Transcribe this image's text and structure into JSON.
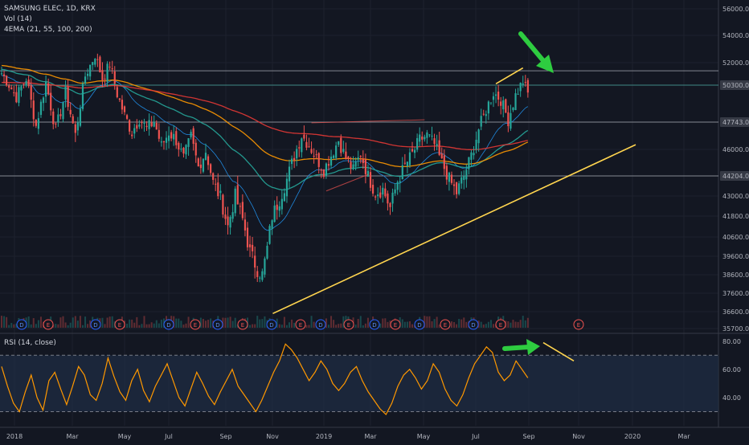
{
  "header": {
    "symbol_line": "SAMSUNG ELEC, 1D, KRX",
    "vol_line": "Vol (14)",
    "ema_line": "4EMA (21, 55, 100, 200)",
    "rsi_line": "RSI (14, close)"
  },
  "colors": {
    "background": "#131722",
    "grid": "#1e222d",
    "up": "#26a69a",
    "down": "#ef5350",
    "ema21": "#2196f3",
    "ema55": "#26a69a",
    "ema100": "#ff9800",
    "ema200": "#e53935",
    "trend": "#ffd54f",
    "arrow": "#2ecc40",
    "rsi": "#ff9800",
    "level": "#b2b5be",
    "level_accent": "#4db6ac"
  },
  "chart_data": [
    {
      "type": "candlestick",
      "symbol": "SAMSUNG ELEC",
      "interval": "1D",
      "exchange": "KRX",
      "x_tick_labels": [
        "2018",
        "Mar",
        "May",
        "Jul",
        "Sep",
        "Nov",
        "2019",
        "Mar",
        "May",
        "Jul",
        "Sep",
        "Nov",
        "2020",
        "Mar"
      ],
      "y_tick_labels": [
        "56000.0",
        "54000.0",
        "52000.0",
        "50300.0",
        "47743.0",
        "46000.0",
        "44204.0",
        "43000.0",
        "41800.0",
        "40600.0",
        "39600.0",
        "38600.0",
        "37600.0",
        "36600.0",
        "35700.0"
      ],
      "ylim": [
        35700,
        56000
      ],
      "price_path": [
        [
          0,
          51200
        ],
        [
          6,
          49500
        ],
        [
          10,
          50800
        ],
        [
          14,
          47500
        ],
        [
          18,
          50500
        ],
        [
          22,
          47200
        ],
        [
          26,
          49800
        ],
        [
          30,
          46900
        ],
        [
          34,
          51000
        ],
        [
          38,
          52600
        ],
        [
          41,
          50800
        ],
        [
          44,
          51900
        ],
        [
          47,
          49700
        ],
        [
          50,
          48200
        ],
        [
          53,
          47100
        ],
        [
          56,
          48000
        ],
        [
          59,
          47300
        ],
        [
          62,
          47800
        ],
        [
          65,
          46200
        ],
        [
          68,
          47100
        ],
        [
          71,
          46600
        ],
        [
          74,
          45400
        ],
        [
          77,
          46800
        ],
        [
          80,
          44800
        ],
        [
          83,
          45900
        ],
        [
          86,
          43800
        ],
        [
          89,
          42900
        ],
        [
          92,
          41200
        ],
        [
          95,
          43000
        ],
        [
          98,
          41600
        ],
        [
          101,
          39800
        ],
        [
          104,
          38900
        ],
        [
          106,
          38600
        ],
        [
          108,
          40000
        ],
        [
          110,
          41800
        ],
        [
          113,
          42800
        ],
        [
          116,
          44000
        ],
        [
          119,
          45600
        ],
        [
          122,
          46900
        ],
        [
          125,
          46300
        ],
        [
          128,
          45400
        ],
        [
          131,
          44600
        ],
        [
          134,
          45600
        ],
        [
          137,
          46600
        ],
        [
          140,
          45400
        ],
        [
          143,
          44600
        ],
        [
          146,
          45700
        ],
        [
          149,
          44200
        ],
        [
          152,
          43200
        ],
        [
          155,
          43400
        ],
        [
          158,
          42300
        ],
        [
          161,
          43900
        ],
        [
          164,
          44900
        ],
        [
          167,
          45700
        ],
        [
          170,
          46600
        ],
        [
          173,
          46900
        ],
        [
          176,
          46300
        ],
        [
          179,
          45100
        ],
        [
          182,
          44000
        ],
        [
          185,
          43200
        ],
        [
          188,
          44200
        ],
        [
          191,
          45600
        ],
        [
          194,
          47300
        ],
        [
          197,
          48600
        ],
        [
          200,
          49800
        ],
        [
          203,
          49300
        ],
        [
          206,
          47900
        ],
        [
          209,
          49600
        ],
        [
          212,
          50600
        ],
        [
          214,
          49700
        ]
      ],
      "emas": [
        {
          "period": 21,
          "start": 51000
        },
        {
          "period": 55,
          "start": 51500
        },
        {
          "period": 100,
          "start": 51800
        },
        {
          "period": 200,
          "start": 50500
        }
      ],
      "horizontal_levels": [
        {
          "price": 51384,
          "label": "51384.0"
        },
        {
          "price": 50300,
          "label": "50300.0"
        },
        {
          "price": 47743,
          "label": "47743.0"
        },
        {
          "price": 44204,
          "label": "44204.0"
        }
      ],
      "trendlines": [
        {
          "name": "rising-support",
          "from": [
            58,
            36500
          ],
          "to": [
            150,
            46300
          ]
        },
        {
          "name": "price-divergence-line",
          "from": [
            201,
            50400
          ],
          "to": [
            212,
            51600
          ]
        },
        {
          "name": "breakout-resistance",
          "from": [
            126,
            47700
          ],
          "to": [
            172,
            47900
          ]
        },
        {
          "name": "lower-resistance",
          "from": [
            132,
            43300
          ],
          "to": [
            149,
            44300
          ]
        }
      ],
      "earnings_markers": [
        "D",
        "E",
        "D",
        "E",
        "D",
        "E",
        "D",
        "E",
        "D",
        "E",
        "D",
        "E",
        "D",
        "E",
        "D",
        "E",
        "D",
        "E",
        "E"
      ],
      "annotations": [
        {
          "type": "arrow",
          "color": "green",
          "pointing": "recent high"
        }
      ]
    },
    {
      "type": "line",
      "name": "RSI",
      "period": 14,
      "y_tick_labels": [
        "80.00",
        "60.00",
        "40.00"
      ],
      "ylim": [
        20,
        85
      ],
      "bands": [
        30,
        70
      ],
      "values": [
        62,
        48,
        36,
        30,
        44,
        56,
        40,
        31,
        52,
        58,
        46,
        35,
        48,
        62,
        56,
        42,
        38,
        50,
        68,
        55,
        44,
        38,
        52,
        60,
        45,
        37,
        48,
        56,
        64,
        52,
        40,
        34,
        46,
        58,
        50,
        41,
        35,
        44,
        52,
        60,
        48,
        42,
        36,
        30,
        38,
        48,
        58,
        66,
        78,
        74,
        68,
        60,
        52,
        58,
        66,
        60,
        50,
        45,
        50,
        58,
        62,
        52,
        44,
        38,
        32,
        28,
        36,
        48,
        56,
        60,
        54,
        46,
        52,
        64,
        58,
        46,
        38,
        34,
        42,
        54,
        64,
        70,
        76,
        72,
        58,
        52,
        56,
        66,
        60,
        54
      ],
      "annotations": [
        {
          "type": "arrow",
          "color": "green"
        },
        {
          "type": "divergence-line",
          "color": "yellow"
        }
      ]
    }
  ]
}
